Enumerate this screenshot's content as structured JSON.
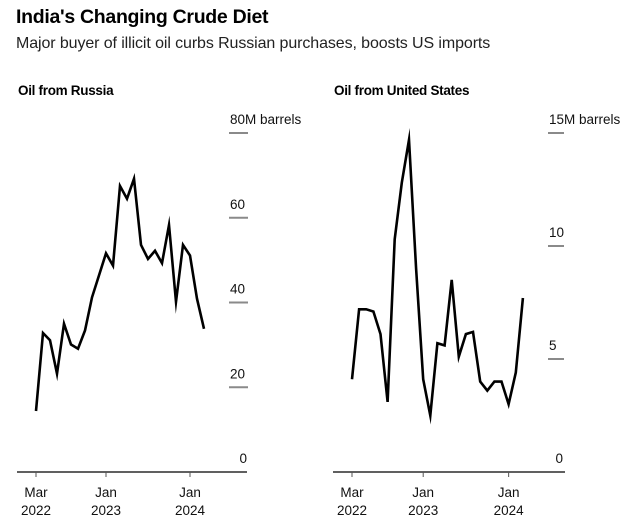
{
  "header": {
    "title": "India's Changing Crude Diet",
    "subtitle": "Major buyer of illicit oil curbs Russian purchases, boosts US imports"
  },
  "chart_data": [
    {
      "id": "russia",
      "type": "line",
      "title": "Oil from Russia",
      "xlabel": "",
      "ylabel": "M barrels",
      "ylim": [
        0,
        80
      ],
      "yticks": [
        0,
        20,
        40,
        60,
        80
      ],
      "ytick_labels": [
        "0",
        "20",
        "40",
        "60",
        "80M barrels"
      ],
      "xtick_labels": [
        {
          "month_index": 0,
          "line1": "Mar",
          "line2": "2022"
        },
        {
          "month_index": 10,
          "line1": "Jan",
          "line2": "2023"
        },
        {
          "month_index": 22,
          "line1": "Jan",
          "line2": "2024"
        }
      ],
      "grid": false,
      "line_color": "#000000",
      "x": [
        "2022-03",
        "2022-04",
        "2022-05",
        "2022-06",
        "2022-07",
        "2022-08",
        "2022-09",
        "2022-10",
        "2022-11",
        "2022-12",
        "2023-01",
        "2023-02",
        "2023-03",
        "2023-04",
        "2023-05",
        "2023-06",
        "2023-07",
        "2023-08",
        "2023-09",
        "2023-10",
        "2023-11",
        "2023-12",
        "2024-01",
        "2024-02",
        "2024-03"
      ],
      "values": [
        14.4,
        32.8,
        31.1,
        23.2,
        35.0,
        30.1,
        29.1,
        33.4,
        41.2,
        46.4,
        51.6,
        48.7,
        67.5,
        64.5,
        69.2,
        53.6,
        50.3,
        52.2,
        49.3,
        58.3,
        40.2,
        53.6,
        51.1,
        40.9,
        33.8
      ]
    },
    {
      "id": "us",
      "type": "line",
      "title": "Oil from United States",
      "xlabel": "",
      "ylabel": "M barrels",
      "ylim": [
        0,
        15
      ],
      "yticks": [
        0,
        5,
        10,
        15
      ],
      "ytick_labels": [
        "0",
        "5",
        "10",
        "15M barrels"
      ],
      "xtick_labels": [
        {
          "month_index": 0,
          "line1": "Mar",
          "line2": "2022"
        },
        {
          "month_index": 10,
          "line1": "Jan",
          "line2": "2023"
        },
        {
          "month_index": 22,
          "line1": "Jan",
          "line2": "2024"
        }
      ],
      "grid": false,
      "line_color": "#000000",
      "x": [
        "2022-03",
        "2022-04",
        "2022-05",
        "2022-06",
        "2022-07",
        "2022-08",
        "2022-09",
        "2022-10",
        "2022-11",
        "2022-12",
        "2023-01",
        "2023-02",
        "2023-03",
        "2023-04",
        "2023-05",
        "2023-06",
        "2023-07",
        "2023-08",
        "2023-09",
        "2023-10",
        "2023-11",
        "2023-12",
        "2024-01",
        "2024-02",
        "2024-03"
      ],
      "values": [
        4.1,
        7.2,
        7.2,
        7.1,
        6.1,
        3.1,
        10.3,
        12.8,
        14.7,
        9.0,
        4.1,
        2.5,
        5.7,
        5.6,
        8.5,
        5.1,
        6.1,
        6.2,
        4.0,
        3.6,
        4.0,
        4.0,
        3.0,
        4.4,
        7.7
      ]
    }
  ]
}
